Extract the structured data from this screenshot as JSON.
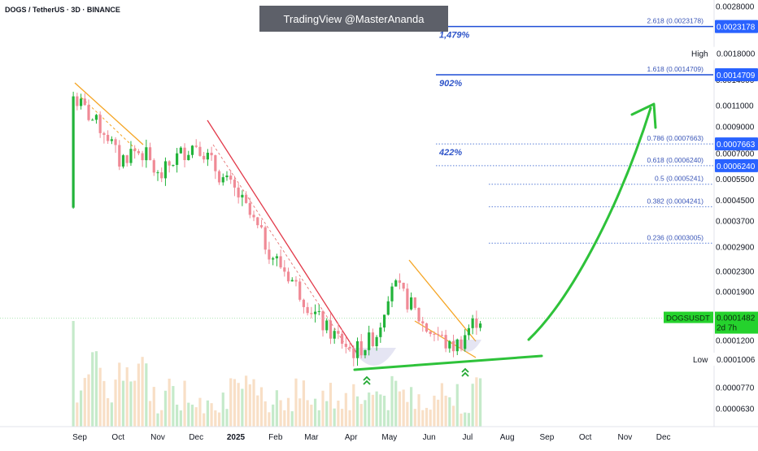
{
  "header": {
    "symbol_title": "DOGS / TetherUS · 3D · BINANCE"
  },
  "watermark": {
    "text": "TradingView @MasterAnanda"
  },
  "colors": {
    "up": "#22b33a",
    "down": "#f08a96",
    "green_line": "#2ec23a",
    "fib_blue": "#1f4fd6",
    "fib_dotted": "#5b7fd8",
    "red_trend": "#e23a4a",
    "orange_channel": "#f5a524",
    "price_tag": "#25d22d"
  },
  "chart_data": {
    "type": "candlestick",
    "title": "DOGS / TetherUS · 3D · BINANCE",
    "y_scale": "log",
    "ylim": [
      5.8e-05,
      0.0028
    ],
    "x_domain": [
      "2024-08-26",
      "2024-12-31"
    ],
    "x_ticks": [
      {
        "label": "Sep",
        "date": "2024-09-01"
      },
      {
        "label": "Oct",
        "date": "2024-10-01"
      },
      {
        "label": "Nov",
        "date": "2024-11-01"
      },
      {
        "label": "Dec",
        "date": "2024-12-01"
      },
      {
        "label": "2025",
        "date": "2025-01-01",
        "bold": true
      },
      {
        "label": "Feb",
        "date": "2025-02-01"
      },
      {
        "label": "Mar",
        "date": "2025-03-01"
      },
      {
        "label": "Apr",
        "date": "2025-04-01"
      },
      {
        "label": "May",
        "date": "2025-05-01"
      },
      {
        "label": "Jun",
        "date": "2025-06-01"
      },
      {
        "label": "Jul",
        "date": "2025-07-01"
      },
      {
        "label": "Aug",
        "date": "2025-08-01"
      },
      {
        "label": "Sep",
        "date": "2025-09-01"
      },
      {
        "label": "Oct",
        "date": "2025-10-01"
      },
      {
        "label": "Nov",
        "date": "2025-11-01"
      },
      {
        "label": "Dec",
        "date": "2025-12-01"
      }
    ],
    "y_ticks": [
      "0.0028000",
      "0.0018000",
      "0.0014000",
      "0.0011000",
      "0.0009000",
      "0.0007000",
      "0.0005500",
      "0.0004500",
      "0.0003700",
      "0.0002900",
      "0.0002300",
      "0.0001900",
      "0.0001200",
      "0.0000770",
      "0.0000630"
    ],
    "price_path": [
      [
        "2024-08-26",
        0.00042
      ],
      [
        "2024-08-30",
        0.0012
      ],
      [
        "2024-09-05",
        0.0011
      ],
      [
        "2024-09-15",
        0.00095
      ],
      [
        "2024-09-25",
        0.00085
      ],
      [
        "2024-10-05",
        0.00065
      ],
      [
        "2024-10-15",
        0.00072
      ],
      [
        "2024-10-25",
        0.0007
      ],
      [
        "2024-11-05",
        0.00055
      ],
      [
        "2024-11-15",
        0.00065
      ],
      [
        "2024-11-25",
        0.00072
      ],
      [
        "2024-12-05",
        0.00078
      ],
      [
        "2024-12-15",
        0.00065
      ],
      [
        "2024-12-25",
        0.00055
      ],
      [
        "2025-01-05",
        0.00048
      ],
      [
        "2025-01-20",
        0.00035
      ],
      [
        "2025-02-01",
        0.00027
      ],
      [
        "2025-02-15",
        0.00022
      ],
      [
        "2025-03-01",
        0.00017
      ],
      [
        "2025-03-15",
        0.000135
      ],
      [
        "2025-03-28",
        0.00012
      ],
      [
        "2025-04-05",
        0.000108
      ],
      [
        "2025-04-15",
        0.000115
      ],
      [
        "2025-04-25",
        0.00013
      ],
      [
        "2025-05-05",
        0.00021
      ],
      [
        "2025-05-12",
        0.00019
      ],
      [
        "2025-05-20",
        0.00017
      ],
      [
        "2025-06-01",
        0.000135
      ],
      [
        "2025-06-10",
        0.000128
      ],
      [
        "2025-06-20",
        0.000112
      ],
      [
        "2025-06-28",
        0.000118
      ],
      [
        "2025-07-05",
        0.000135
      ],
      [
        "2025-07-12",
        0.0001482
      ]
    ],
    "fib_levels": [
      {
        "label": "2.618 (0.0023178)",
        "price": 0.0023178,
        "tag": "0.0023178",
        "pct": "1,479%",
        "style": "solid"
      },
      {
        "label": "1.618 (0.0014709)",
        "price": 0.0014709,
        "tag": "0.0014709",
        "pct": "902%",
        "style": "solid"
      },
      {
        "label": "0.786 (0.0007663)",
        "price": 0.0007663,
        "tag": "0.0007663",
        "pct": "422%",
        "style": "dotted"
      },
      {
        "label": "0.618 (0.0006240)",
        "price": 0.000624,
        "tag": "0.0006240",
        "pct": "",
        "style": "dotted"
      },
      {
        "label": "0.5 (0.0005241)",
        "price": 0.0005241,
        "tag": "",
        "pct": "",
        "style": "dotted"
      },
      {
        "label": "0.382 (0.0004241)",
        "price": 0.0004241,
        "tag": "",
        "pct": "",
        "style": "dotted"
      },
      {
        "label": "0.236 (0.0003005)",
        "price": 0.0003005,
        "tag": "",
        "pct": "",
        "style": "dotted"
      }
    ],
    "high_label": {
      "label": "High",
      "price": 0.0018,
      "tag": "0.0018000"
    },
    "low_label": {
      "label": "Low",
      "price": 0.0001006,
      "tag": "0.0001006"
    },
    "current_price": {
      "symbol": "DOGSUSDT",
      "price": 0.0001482,
      "tag": "0.0001482",
      "countdown": "2d 7h"
    }
  }
}
